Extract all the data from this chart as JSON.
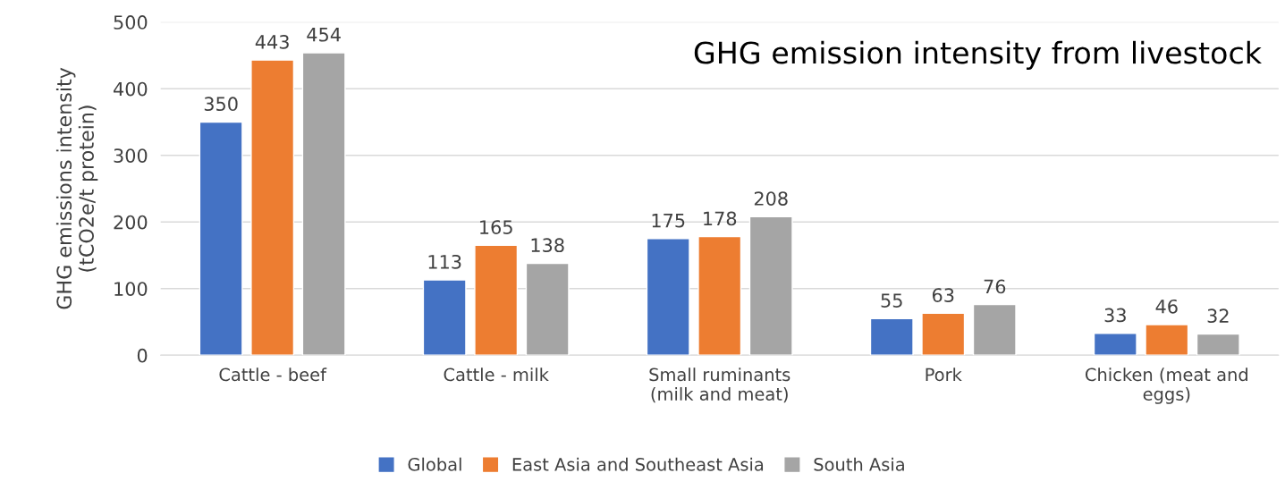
{
  "chart_data": {
    "type": "bar",
    "title": "GHG emission intensity from livestock",
    "ylabel": "GHG emissions intensity\n(tCO2e/t protein)",
    "categories": [
      "Cattle - beef",
      "Cattle - milk",
      "Small ruminants\n(milk and meat)",
      "Pork",
      "Chicken (meat and\neggs)"
    ],
    "series": [
      {
        "name": "Global",
        "color": "#4472c4",
        "values": [
          350,
          113,
          175,
          55,
          33
        ]
      },
      {
        "name": "East Asia and Southeast Asia",
        "color": "#ed7d31",
        "values": [
          443,
          165,
          178,
          63,
          46
        ]
      },
      {
        "name": "South Asia",
        "color": "#a5a5a5",
        "values": [
          454,
          138,
          208,
          76,
          32
        ]
      }
    ],
    "ylim": [
      0,
      500
    ],
    "yticks": [
      0,
      100,
      200,
      300,
      400,
      500
    ],
    "grid": "y",
    "data_labels": true,
    "legend": "bottom"
  }
}
